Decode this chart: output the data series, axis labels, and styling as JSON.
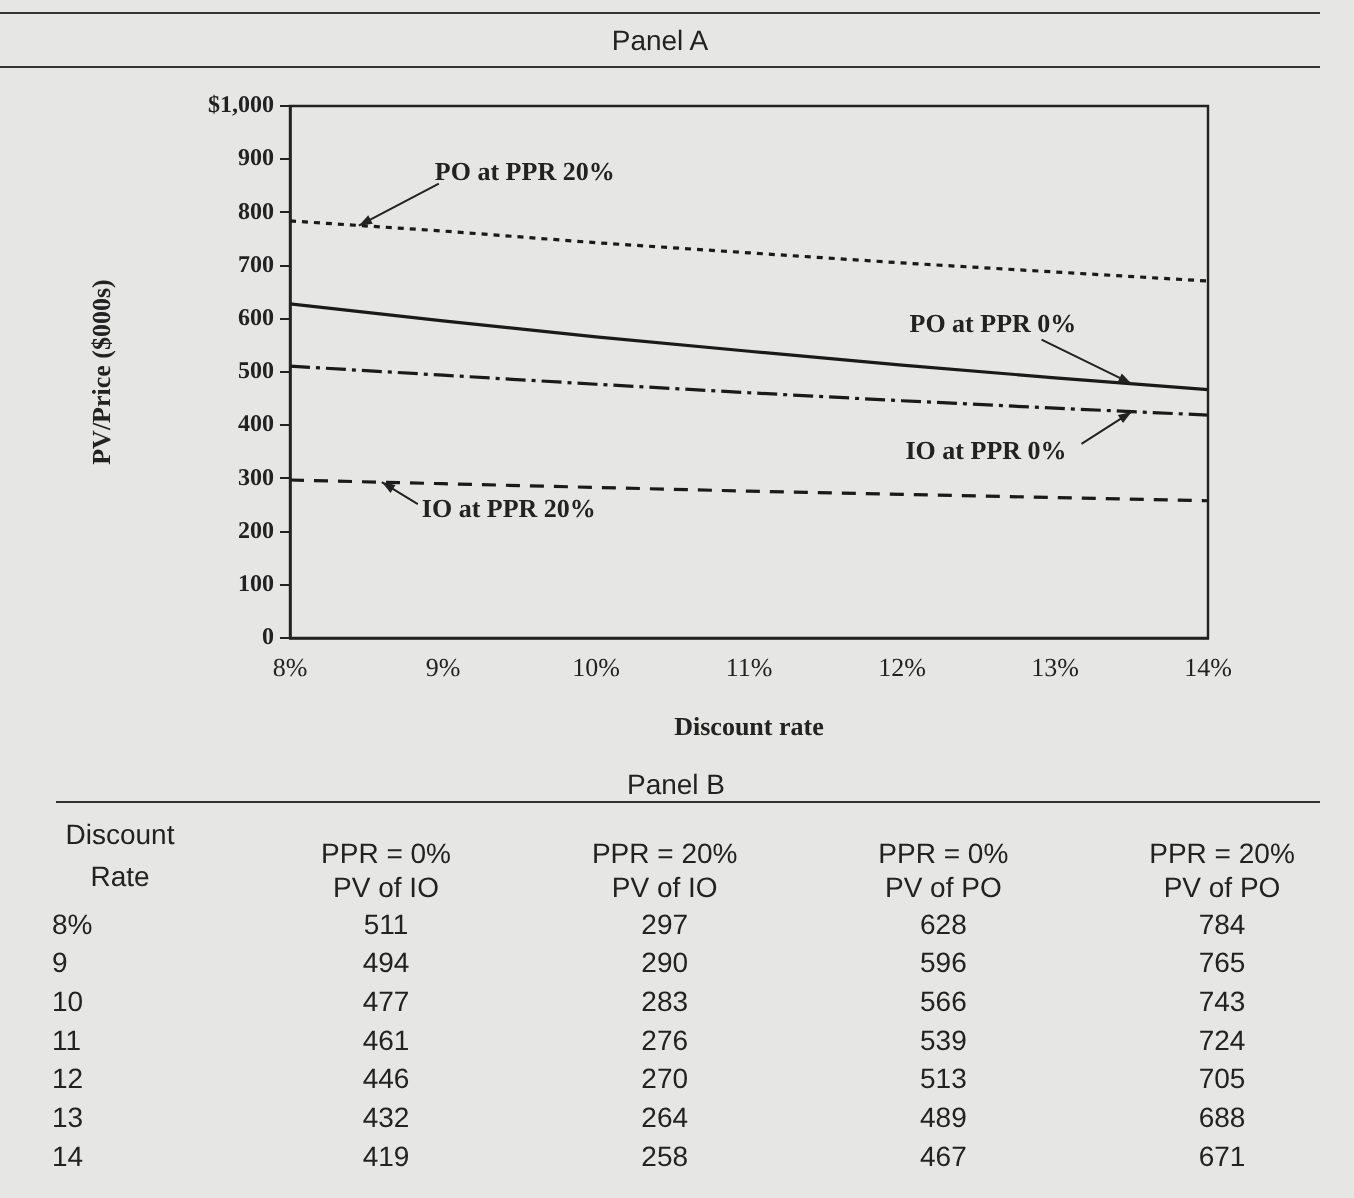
{
  "chart_data": [
    {
      "type": "line",
      "title": "Panel A",
      "xlabel": "Discount rate",
      "ylabel": "PV/Price ($000s)",
      "x": [
        8,
        9,
        10,
        11,
        12,
        13,
        14
      ],
      "series": [
        {
          "color": "#1a1a1a",
          "line_style": "dashdot",
          "values": [
            511,
            494,
            477,
            461,
            446,
            432,
            419
          ]
        },
        {
          "color": "#1a1a1a",
          "line_style": "dashed",
          "values": [
            297,
            290,
            283,
            276,
            270,
            264,
            258
          ]
        },
        {
          "color": "#1a1a1a",
          "line_style": "solid",
          "values": [
            628,
            596,
            566,
            539,
            513,
            489,
            467
          ]
        },
        {
          "color": "#1a1a1a",
          "line_style": "dotted",
          "values": [
            784,
            765,
            743,
            724,
            705,
            688,
            671
          ]
        }
      ],
      "xlim": [
        8,
        14
      ],
      "xticks": [
        {
          "value": 8,
          "label": "8%"
        },
        {
          "value": 9,
          "label": "9%"
        },
        {
          "value": 10,
          "label": "10%"
        },
        {
          "value": 11,
          "label": "11%"
        },
        {
          "value": 12,
          "label": "12%"
        },
        {
          "value": 13,
          "label": "13%"
        },
        {
          "value": 14,
          "label": "14%"
        }
      ],
      "ylim": [
        0,
        1000
      ],
      "yticks": [
        0,
        100,
        200,
        300,
        400,
        500,
        600,
        700,
        800,
        900,
        {
          "value": 1000,
          "label": "$1,000"
        }
      ],
      "grid": false,
      "legend": false,
      "marker": "none",
      "annotations": [
        {
          "text": "PO at PPR 20%",
          "x": 8.45,
          "y": 775
        },
        {
          "text": "PO at PPR 0%",
          "x": 13.5,
          "y": 478
        },
        {
          "text": "IO at PPR 0%",
          "x": 13.5,
          "y": 425
        },
        {
          "text": "IO at PPR 20%",
          "x": 8.6,
          "y": 293
        }
      ]
    },
    {
      "type": "heatmap",
      "title": "Panel B",
      "categories": [
        "PPR = 0%\nPV of IO",
        "PPR = 20%\nPV of IO",
        "PPR = 0%\nPV of PO",
        "PPR = 20%\nPV of PO"
      ],
      "y_categories": [
        "8%",
        "9",
        "10",
        "11",
        "12",
        "13",
        "14"
      ],
      "cells": [
        [
          511,
          297,
          628,
          784
        ],
        [
          494,
          290,
          596,
          765
        ],
        [
          477,
          283,
          566,
          743
        ],
        [
          461,
          276,
          539,
          724
        ],
        [
          446,
          270,
          513,
          705
        ],
        [
          432,
          264,
          489,
          688
        ],
        [
          419,
          258,
          467,
          671
        ]
      ],
      "data_labels": true,
      "annotations": [
        "Discount Rate"
      ]
    }
  ]
}
